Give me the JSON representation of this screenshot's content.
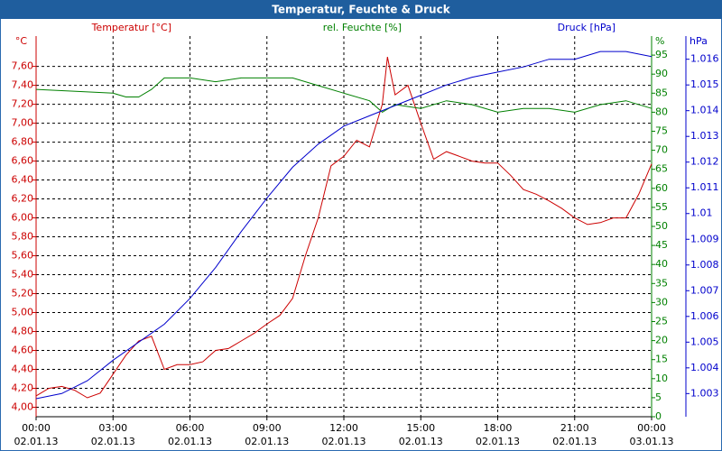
{
  "chart_data": {
    "type": "line",
    "title": "Temperatur, Feuchte & Druck",
    "y_label": "°C",
    "y2_label": "%",
    "y3_label": "hPa",
    "grid": true,
    "xlim": [
      0,
      24
    ],
    "xticks": [
      {
        "value": 0,
        "label": "00:00",
        "date": "02.01.13"
      },
      {
        "value": 3,
        "label": "03:00",
        "date": "02.01.13"
      },
      {
        "value": 6,
        "label": "06:00",
        "date": "02.01.13"
      },
      {
        "value": 9,
        "label": "09:00",
        "date": "02.01.13"
      },
      {
        "value": 12,
        "label": "12:00",
        "date": "02.01.13"
      },
      {
        "value": 15,
        "label": "15:00",
        "date": "02.01.13"
      },
      {
        "value": 18,
        "label": "18:00",
        "date": "02.01.13"
      },
      {
        "value": 21,
        "label": "21:00",
        "date": "02.01.13"
      },
      {
        "value": 24,
        "label": "00:00",
        "date": "03.01.13"
      }
    ],
    "ylim": [
      3.9,
      7.92
    ],
    "yticks": [
      {
        "value": 4.0,
        "label": "4,00"
      },
      {
        "value": 4.2,
        "label": "4,20"
      },
      {
        "value": 4.4,
        "label": "4,40"
      },
      {
        "value": 4.6,
        "label": "4,60"
      },
      {
        "value": 4.8,
        "label": "4,80"
      },
      {
        "value": 5.0,
        "label": "5,00"
      },
      {
        "value": 5.2,
        "label": "5,20"
      },
      {
        "value": 5.4,
        "label": "5,40"
      },
      {
        "value": 5.6,
        "label": "5,60"
      },
      {
        "value": 5.8,
        "label": "5,80"
      },
      {
        "value": 6.0,
        "label": "6,00"
      },
      {
        "value": 6.2,
        "label": "6,20"
      },
      {
        "value": 6.4,
        "label": "6,40"
      },
      {
        "value": 6.6,
        "label": "6,60"
      },
      {
        "value": 6.8,
        "label": "6,80"
      },
      {
        "value": 7.0,
        "label": "7,00"
      },
      {
        "value": 7.2,
        "label": "7,20"
      },
      {
        "value": 7.4,
        "label": "7,40"
      },
      {
        "value": 7.6,
        "label": "7,60"
      }
    ],
    "y2lim": [
      0,
      100
    ],
    "y2ticks": [
      0,
      5,
      10,
      15,
      20,
      25,
      30,
      35,
      40,
      45,
      50,
      55,
      60,
      65,
      70,
      75,
      80,
      85,
      90,
      95
    ],
    "y3lim": [
      1.0021,
      1.0169
    ],
    "y3ticks": [
      1.003,
      1.004,
      1.005,
      1.006,
      1.007,
      1.008,
      1.009,
      1.01,
      1.011,
      1.012,
      1.013,
      1.014,
      1.015,
      1.016
    ],
    "series": [
      {
        "name": "Temperatur [°C]",
        "color": "#cc0000",
        "axis": "y",
        "x": [
          0,
          0.5,
          1,
          1.5,
          2,
          2.5,
          3,
          3.5,
          4,
          4.5,
          5,
          5.5,
          6,
          6.5,
          7,
          7.5,
          8,
          8.5,
          9,
          9.5,
          10,
          10.5,
          11,
          11.5,
          12,
          12.5,
          13,
          13.5,
          13.7,
          14,
          14.5,
          15,
          15.5,
          16,
          16.5,
          17,
          17.5,
          18,
          18.5,
          19,
          19.5,
          20,
          20.5,
          21,
          21.5,
          22,
          22.5,
          23,
          23.5,
          24
        ],
        "values": [
          4.12,
          4.2,
          4.22,
          4.18,
          4.1,
          4.15,
          4.35,
          4.55,
          4.7,
          4.75,
          4.4,
          4.45,
          4.45,
          4.48,
          4.6,
          4.62,
          4.7,
          4.78,
          4.88,
          4.97,
          5.15,
          5.6,
          6.0,
          6.55,
          6.65,
          6.82,
          6.75,
          7.2,
          7.7,
          7.3,
          7.4,
          7.0,
          6.62,
          6.7,
          6.65,
          6.6,
          6.58,
          6.58,
          6.45,
          6.3,
          6.25,
          6.18,
          6.1,
          6.0,
          5.93,
          5.95,
          6.0,
          6.0,
          6.25,
          6.57
        ]
      },
      {
        "name": "rel. Feuchte [%]",
        "color": "#008000",
        "axis": "y2",
        "x": [
          0,
          3,
          3.5,
          4,
          4.5,
          5,
          6,
          7,
          8,
          9,
          10,
          11,
          12,
          13,
          13.5,
          14,
          15,
          16,
          17,
          18,
          19,
          20,
          21,
          22,
          23,
          24
        ],
        "values": [
          86,
          85,
          84,
          84,
          86,
          89,
          89,
          88,
          89,
          89,
          89,
          87,
          85,
          83,
          80,
          82,
          81,
          83,
          82,
          80,
          81,
          81,
          80,
          82,
          83,
          81
        ]
      },
      {
        "name": "Druck [hPa]",
        "color": "#0000cc",
        "axis": "y3",
        "x": [
          0,
          1,
          2,
          3,
          4,
          5,
          6,
          7,
          8,
          9,
          10,
          11,
          12,
          13,
          14,
          15,
          16,
          17,
          18,
          19,
          20,
          21,
          22,
          23,
          24
        ],
        "values": [
          1.0028,
          1.003,
          1.0035,
          1.0043,
          1.005,
          1.0057,
          1.0067,
          1.0079,
          1.0093,
          1.0106,
          1.0118,
          1.0127,
          1.0134,
          1.0138,
          1.0142,
          1.0146,
          1.015,
          1.0153,
          1.0155,
          1.0157,
          1.016,
          1.016,
          1.0163,
          1.0163,
          1.0161
        ]
      }
    ]
  }
}
